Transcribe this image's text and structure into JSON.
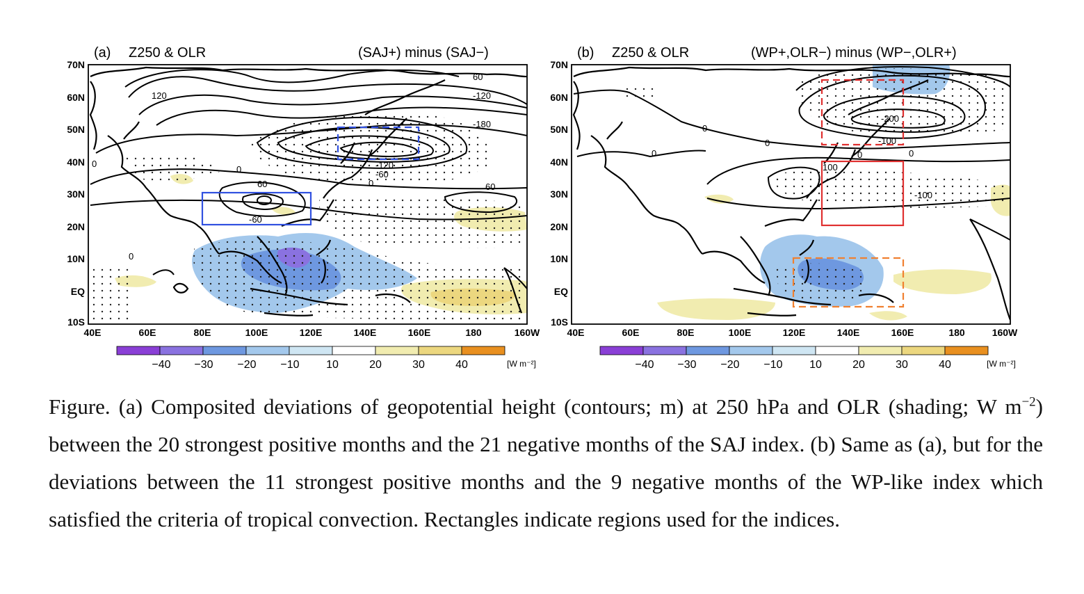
{
  "panels": [
    {
      "id": "a",
      "label": "(a)",
      "field": "Z250 & OLR",
      "title": "(SAJ+) minus (SAJ−)",
      "contour_labels": [
        "120",
        "60",
        "0",
        "-120",
        "-180",
        "-120",
        "-60",
        "0",
        "60",
        "-60",
        "60",
        "0",
        "0"
      ],
      "box_colors": {
        "solid": "#3050e0",
        "dashed": "#3050e0"
      }
    },
    {
      "id": "b",
      "label": "(b)",
      "field": "Z250 & OLR",
      "title": "(WP+,OLR−) minus (WP−,OLR+)",
      "contour_labels": [
        "0",
        "0",
        "0",
        "0",
        "-200",
        "-100",
        "0",
        "100",
        "-100"
      ],
      "box_colors": {
        "solid_red": "#e03030",
        "dashed_red": "#e03030",
        "dashed_orange": "#f08030"
      }
    }
  ],
  "axes": {
    "y_ticks": [
      "70N",
      "60N",
      "50N",
      "40N",
      "30N",
      "20N",
      "10N",
      "EQ",
      "10S"
    ],
    "x_ticks": [
      "40E",
      "60E",
      "80E",
      "100E",
      "120E",
      "140E",
      "160E",
      "180",
      "160W"
    ]
  },
  "colorbar": {
    "labels": [
      "−40",
      "−30",
      "−20",
      "−10",
      "10",
      "20",
      "30",
      "40"
    ],
    "unit": "[W m⁻²]",
    "colors": [
      "#8a3fd6",
      "#8a72e0",
      "#6e98e0",
      "#a3c8ec",
      "#cfe6f3",
      "#ffffff",
      "#f1ecb0",
      "#ecd77f",
      "#e8b64f",
      "#e99020"
    ]
  },
  "caption": {
    "part1": "Figure. (a) Composited deviations of geopotential height (contours; m) at 250 hPa and OLR (shading; W m",
    "sup": "−2",
    "part2": ") between the 20 strongest positive months and the 21 negative months of the SAJ index. (b) Same as (a), but for the deviations between the 11 strongest positive months and the 9 negative months of the WP-like index which satisfied the criteria of tropical convection. Rectangles indicate regions used for the indices."
  }
}
